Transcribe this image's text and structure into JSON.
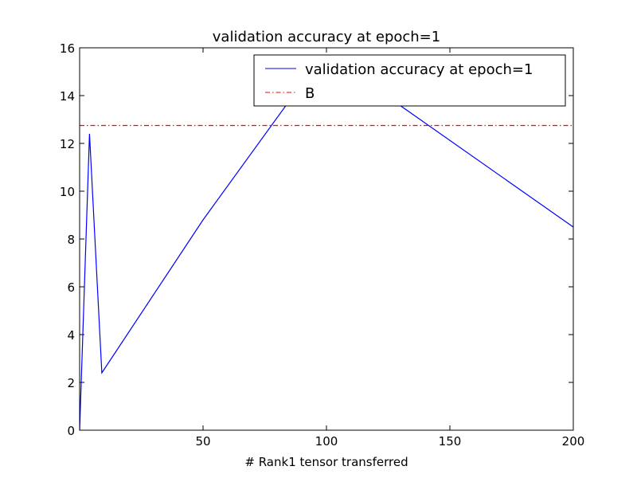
{
  "chart_data": {
    "type": "line",
    "title": "validation accuracy at epoch=1",
    "xlabel": "# Rank1 tensor transferred",
    "ylabel": "",
    "xlim": [
      0,
      200
    ],
    "ylim": [
      0,
      16
    ],
    "xticks": [
      50,
      100,
      150,
      200
    ],
    "yticks": [
      0,
      2,
      4,
      6,
      8,
      10,
      12,
      14,
      16
    ],
    "grid": false,
    "legend_position": "top-right",
    "series": [
      {
        "name": "validation accuracy at epoch=1",
        "color": "#0000ff",
        "style": "solid",
        "x": [
          0,
          4,
          9,
          50,
          90,
          120,
          200
        ],
        "y": [
          0,
          12.4,
          2.4,
          8.8,
          14.5,
          14.3,
          8.5
        ]
      },
      {
        "name": "B",
        "color": "#ff0000",
        "style": "dashdot",
        "x": [
          0,
          200
        ],
        "y": [
          12.75,
          12.75
        ]
      }
    ]
  }
}
